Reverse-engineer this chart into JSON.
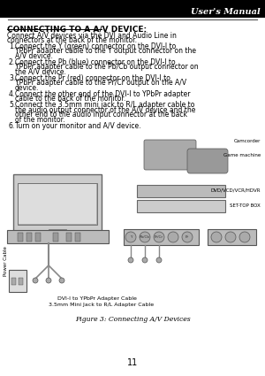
{
  "page_num": "11",
  "header_right": "User's Manual",
  "section_title": "CONNECTING TO A A/V DEVICE:",
  "intro": "Connect A/V devices via the DVI and Audio Line in connectors at the back of the monitor.",
  "steps": [
    "Connect the Y (green) connector on the DVI-I to YPbPr adapter cable to the Y output connector on the A/V device.",
    "Connect the Pb (blue) connector on the DVI-I to YPbPr adapter cable to the Pb/Cb output connector on the A/V device.",
    "Connect the Pr (red) connector on the DVI-I to YPbPr adapter cable to the Pr/Cr output on the A/V device.",
    "Connect the other end of the DVI-I to YPbPr adapter cable to the back of the monitor.",
    "Connect the 3.5mm mini jack to R/L adapter cable to the audio output connector of the A/V device and the other end to the audio input connector at the back of the monitor.",
    "Turn on your monitor and A/V device."
  ],
  "labels_right": [
    "Camcorder",
    "Game machine",
    "DVD/VCD/VCR/HDVR",
    "SET-TOP BOX"
  ],
  "caption1": "DVI-I to YPbPr Adapter Cable",
  "caption2": "3.5mm Mini Jack to R/L Adapter Cable",
  "figure_caption": "Figure 3: Connecting A/V Devices",
  "bg_color": "#ffffff",
  "text_color": "#000000",
  "header_bg": "#000000",
  "header_text_color": "#ffffff",
  "body_font_size": 5.5,
  "title_font_size": 6.5,
  "header_font_size": 7.0
}
